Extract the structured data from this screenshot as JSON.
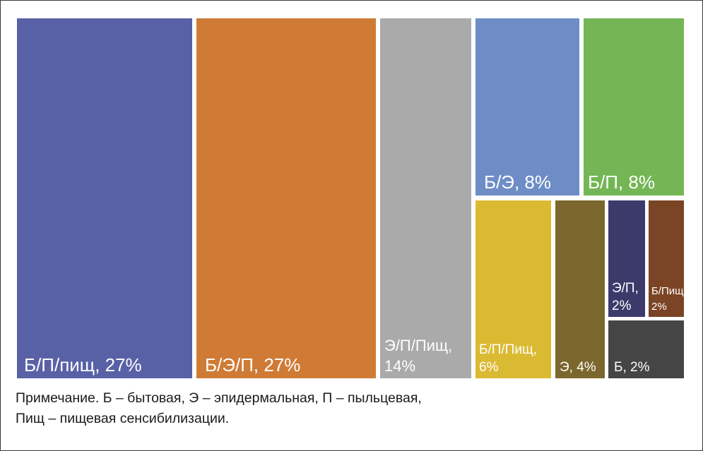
{
  "chart_data": {
    "type": "treemap",
    "title": "",
    "items": [
      {
        "label": "Б/П/пищ, 27%",
        "lines": [
          "Б/П/пищ, 27%"
        ],
        "value": 27,
        "color": "#5961a6"
      },
      {
        "label": "Б/Э/П, 27%",
        "lines": [
          "Б/Э/П, 27%"
        ],
        "value": 27,
        "color": "#cf7b35"
      },
      {
        "label": "Э/П/Пищ, 14%",
        "lines": [
          "Э/П/Пищ,",
          "14%"
        ],
        "value": 14,
        "color": "#aaaaaa"
      },
      {
        "label": "Б/Э, 8%",
        "lines": [
          "Б/Э, 8%"
        ],
        "value": 8,
        "color": "#6e8dc7"
      },
      {
        "label": "Б/П, 8%",
        "lines": [
          "Б/П, 8%"
        ],
        "value": 8,
        "color": "#74b655"
      },
      {
        "label": "Б/П/Пищ, 6%",
        "lines": [
          "Б/П/Пищ,",
          "6%"
        ],
        "value": 6,
        "color": "#dbba33"
      },
      {
        "label": "Э, 4%",
        "lines": [
          "Э, 4%"
        ],
        "value": 4,
        "color": "#7b672d"
      },
      {
        "label": "Э/П, 2%",
        "lines": [
          "Э/П,",
          "2%"
        ],
        "value": 2,
        "color": "#3b3a6b"
      },
      {
        "label": "Б/Пищ, 2%",
        "lines": [
          "Б/Пищ,",
          "2%"
        ],
        "value": 2,
        "color": "#7a4425"
      },
      {
        "label": "Б, 2%",
        "lines": [
          "Б, 2%"
        ],
        "value": 2,
        "color": "#454545"
      }
    ]
  },
  "note": {
    "line1": "Примечание. Б – бытовая, Э – эпидермальная, П – пыльцевая,",
    "line2": "Пищ – пищевая сенсибилизации."
  }
}
